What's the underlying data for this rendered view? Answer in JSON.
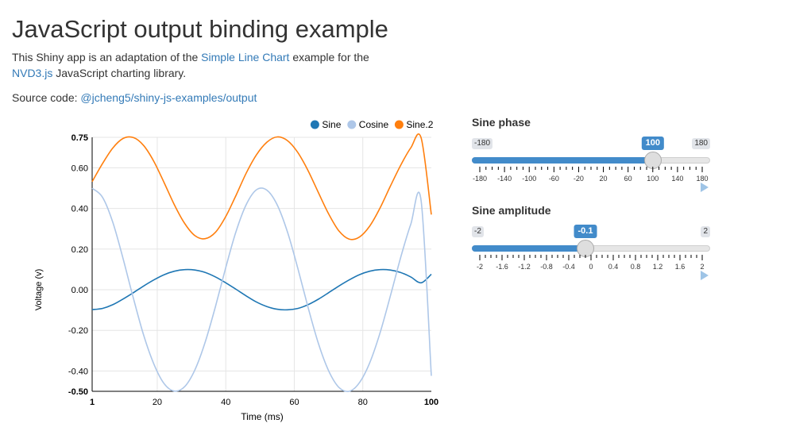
{
  "page": {
    "title": "JavaScript output binding example",
    "intro_prefix": "This Shiny app is an adaptation of the ",
    "intro_link": "Simple Line Chart",
    "intro_middle": " example for the ",
    "intro_link2": "NVD3.js",
    "intro_suffix": " JavaScript charting library.",
    "source_prefix": "Source code: ",
    "source_link": "@jcheng5/shiny-js-examples/output"
  },
  "sliders": [
    {
      "label": "Sine phase",
      "min": -180,
      "max": 180,
      "value": 100,
      "min_label": "-180",
      "max_label": "180",
      "value_label": "100",
      "ticks": [
        "-180",
        "-140",
        "-100",
        "-60",
        "-20",
        "20",
        "60",
        "100",
        "140",
        "180"
      ]
    },
    {
      "label": "Sine amplitude",
      "min": -2,
      "max": 2,
      "value": -0.1,
      "min_label": "-2",
      "max_label": "2",
      "value_label": "-0.1",
      "ticks": [
        "-2",
        "-1.6",
        "-1.2",
        "-0.8",
        "-0.4",
        "0",
        "0.4",
        "0.8",
        "1.2",
        "1.6",
        "2"
      ]
    }
  ],
  "chart_data": {
    "type": "line",
    "xlabel": "Time (ms)",
    "ylabel": "Voltage (v)",
    "xlim": [
      1,
      100
    ],
    "ylim": [
      -0.5,
      0.75
    ],
    "x_ticks": [
      "1",
      "20",
      "40",
      "60",
      "80",
      "100"
    ],
    "y_ticks": [
      "0.75",
      "0.60",
      "0.40",
      "0.20",
      "0.00",
      "-0.20",
      "-0.40",
      "-0.50"
    ],
    "legend_position": "top-right",
    "grid": true,
    "x": [
      1,
      4,
      7,
      10,
      13,
      16,
      19,
      22,
      25,
      28,
      31,
      34,
      37,
      40,
      43,
      46,
      49,
      52,
      55,
      58,
      61,
      64,
      67,
      70,
      73,
      76,
      79,
      82,
      85,
      88,
      91,
      94,
      97,
      100
    ],
    "series": [
      {
        "name": "Sine",
        "color": "#1f77b4",
        "values": [
          -0.098,
          -0.092,
          -0.074,
          -0.046,
          -0.015,
          0.018,
          0.048,
          0.074,
          0.091,
          0.099,
          0.097,
          0.085,
          0.063,
          0.034,
          0.002,
          -0.031,
          -0.061,
          -0.083,
          -0.096,
          -0.099,
          -0.092,
          -0.074,
          -0.047,
          -0.015,
          0.018,
          0.048,
          0.074,
          0.091,
          0.099,
          0.097,
          0.085,
          0.063,
          0.034,
          0.076
        ]
      },
      {
        "name": "Cosine",
        "color": "#aec7e8",
        "values": [
          0.499,
          0.456,
          0.333,
          0.155,
          -0.04,
          -0.222,
          -0.365,
          -0.462,
          -0.499,
          -0.477,
          -0.394,
          -0.258,
          -0.082,
          0.109,
          0.287,
          0.42,
          0.492,
          0.49,
          0.418,
          0.285,
          0.107,
          -0.085,
          -0.263,
          -0.398,
          -0.48,
          -0.5,
          -0.458,
          -0.36,
          -0.214,
          -0.034,
          0.156,
          0.322,
          0.439,
          -0.424
        ]
      },
      {
        "name": "Sine.2",
        "color": "#ff7f0e",
        "values": [
          0.532,
          0.62,
          0.697,
          0.744,
          0.749,
          0.71,
          0.632,
          0.527,
          0.418,
          0.326,
          0.266,
          0.251,
          0.283,
          0.36,
          0.465,
          0.575,
          0.665,
          0.726,
          0.752,
          0.734,
          0.676,
          0.587,
          0.479,
          0.374,
          0.29,
          0.249,
          0.259,
          0.313,
          0.401,
          0.508,
          0.611,
          0.698,
          0.748,
          0.37
        ]
      }
    ]
  }
}
